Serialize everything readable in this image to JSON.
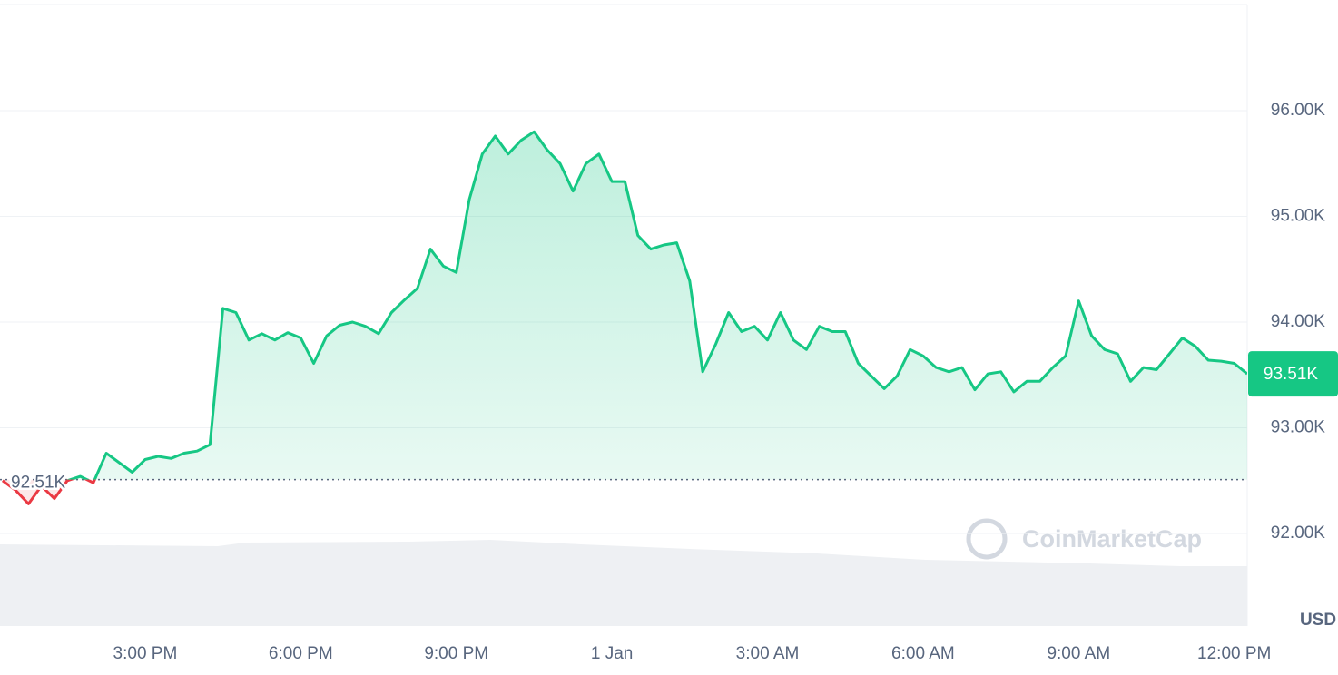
{
  "chart_data": {
    "type": "line",
    "categories": [
      null,
      null,
      null,
      null,
      null,
      null,
      null,
      null,
      null,
      null,
      null,
      "3:00 PM",
      null,
      null,
      null,
      null,
      null,
      null,
      null,
      null,
      null,
      null,
      null,
      "6:00 PM",
      null,
      null,
      null,
      null,
      null,
      null,
      null,
      null,
      null,
      null,
      null,
      "9:00 PM",
      null,
      null,
      null,
      null,
      null,
      null,
      null,
      null,
      null,
      null,
      null,
      "1 Jan",
      null,
      null,
      null,
      null,
      null,
      null,
      null,
      null,
      null,
      null,
      null,
      "3:00 AM",
      null,
      null,
      null,
      null,
      null,
      null,
      null,
      null,
      null,
      null,
      null,
      "6:00 AM",
      null,
      null,
      null,
      null,
      null,
      null,
      null,
      null,
      null,
      null,
      null,
      "9:00 AM",
      null,
      null,
      null,
      null,
      null,
      null,
      null,
      null,
      null,
      null,
      null,
      "12:00 PM",
      null
    ],
    "values": [
      92500,
      92410,
      92280,
      92450,
      92330,
      92500,
      92540,
      92480,
      92760,
      92670,
      92580,
      92700,
      92730,
      92710,
      92760,
      92780,
      92840,
      94130,
      94090,
      93830,
      93890,
      93830,
      93900,
      93850,
      93610,
      93870,
      93970,
      94000,
      93960,
      93890,
      94090,
      94210,
      94320,
      94690,
      94530,
      94470,
      95160,
      95590,
      95760,
      95590,
      95720,
      95800,
      95630,
      95500,
      95240,
      95500,
      95590,
      95330,
      95330,
      94820,
      94690,
      94730,
      94750,
      94390,
      93530,
      93790,
      94090,
      93910,
      93960,
      93830,
      94090,
      93830,
      93740,
      93960,
      93910,
      93910,
      93610,
      93490,
      93370,
      93490,
      93740,
      93680,
      93570,
      93530,
      93570,
      93360,
      93510,
      93530,
      93340,
      93440,
      93440,
      93570,
      93680,
      94200,
      93870,
      93740,
      93700,
      93440,
      93570,
      93550,
      93700,
      93850,
      93770,
      93640,
      93630,
      93610,
      93510
    ],
    "color": "#16c784",
    "below_color": "#ea3943",
    "ylim": [
      91125,
      97000
    ],
    "yticks": [
      {
        "value": 92000,
        "label": "92.00K"
      },
      {
        "value": 93000,
        "label": "93.00K"
      },
      {
        "value": 94000,
        "label": "94.00K"
      },
      {
        "value": 95000,
        "label": "95.00K"
      },
      {
        "value": 96000,
        "label": "96.00K"
      }
    ],
    "y_axis_label": "USD",
    "reference_line": {
      "value": 92510,
      "label": "92.51K"
    },
    "current_price": {
      "value": 93510,
      "label": "93.51K"
    },
    "watermark": "CoinMarketCap",
    "grid": true
  }
}
